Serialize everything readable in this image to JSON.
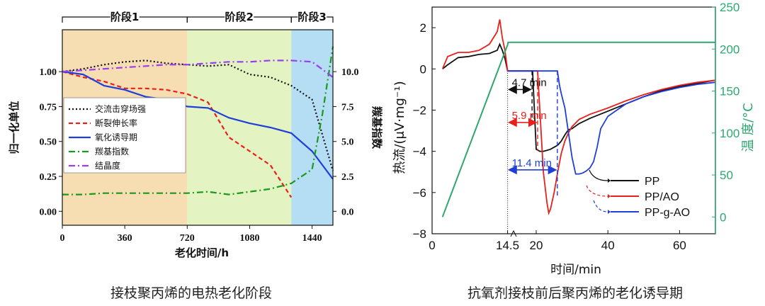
{
  "captions": {
    "left": "接枝聚丙烯的电热老化阶段",
    "right": "抗氧剂接枝前后聚丙烯的老化诱导期"
  },
  "chart_data": [
    {
      "type": "line",
      "xlabel": "老化时间/h",
      "ylabel": "归一化单位",
      "y2label": "羰基指数",
      "xlim": [
        0,
        1560
      ],
      "ylim": [
        -0.1,
        1.3
      ],
      "y2lim": [
        -1.0,
        13.0
      ],
      "xticks": [
        "0",
        "360",
        "720",
        "1080",
        "1440"
      ],
      "xtick_values": [
        0,
        360,
        720,
        1080,
        1440
      ],
      "yticks": [
        "0.00",
        "0.25",
        "0.50",
        "0.75",
        "1.00"
      ],
      "ytick_values": [
        0,
        0.25,
        0.5,
        0.75,
        1.0
      ],
      "y2ticks": [
        "0.0",
        "2.5",
        "5.0",
        "7.5",
        "10.0"
      ],
      "y2tick_values": [
        0,
        2.5,
        5.0,
        7.5,
        10.0
      ],
      "stages": [
        {
          "label": "阶段1",
          "x0": 0,
          "x1": 720,
          "color": "#f7ddb2"
        },
        {
          "label": "阶段2",
          "x0": 720,
          "x1": 1320,
          "color": "#e3f4c2"
        },
        {
          "label": "阶段3",
          "x0": 1320,
          "x1": 1560,
          "color": "#b5def5"
        }
      ],
      "legend_position": "center-left",
      "series": [
        {
          "name": "交流击穿场强",
          "color": "#111111",
          "dash": "2,3",
          "x": [
            0,
            120,
            240,
            360,
            480,
            600,
            720,
            840,
            960,
            1080,
            1200,
            1320,
            1440,
            1560
          ],
          "y": [
            1.0,
            1.02,
            1.05,
            1.07,
            1.08,
            1.06,
            1.05,
            1.04,
            1.05,
            0.98,
            0.96,
            0.9,
            0.8,
            0.29
          ]
        },
        {
          "name": "断裂伸长率",
          "color": "#e8201c",
          "dash": "6,4",
          "x": [
            0,
            120,
            240,
            360,
            480,
            600,
            720,
            840,
            960,
            1080,
            1200,
            1320
          ],
          "y": [
            1.0,
            0.96,
            0.93,
            0.88,
            0.88,
            0.87,
            0.84,
            0.78,
            0.53,
            0.43,
            0.33,
            0.1
          ]
        },
        {
          "name": "氧化诱导期",
          "color": "#1f3fd8",
          "dash": "",
          "x": [
            0,
            120,
            240,
            360,
            480,
            600,
            720,
            840,
            960,
            1080,
            1200,
            1320,
            1440,
            1560
          ],
          "y": [
            1.0,
            0.98,
            0.9,
            0.87,
            0.82,
            0.8,
            0.75,
            0.74,
            0.67,
            0.63,
            0.6,
            0.56,
            0.43,
            0.23
          ]
        },
        {
          "name": "羰基指数",
          "color": "#1a9a1a",
          "dash": "9,4,2,4",
          "axis": "y2",
          "x": [
            0,
            120,
            240,
            360,
            480,
            600,
            720,
            840,
            960,
            1080,
            1200,
            1320,
            1440,
            1500,
            1560
          ],
          "y": [
            1.2,
            1.2,
            1.3,
            1.3,
            1.3,
            1.3,
            1.3,
            1.4,
            1.2,
            1.4,
            1.6,
            2.0,
            3.0,
            7.0,
            11.8
          ]
        },
        {
          "name": "结晶度",
          "color": "#9b3df0",
          "dash": "9,4,2,4",
          "x": [
            0,
            120,
            240,
            360,
            480,
            600,
            720,
            840,
            960,
            1080,
            1200,
            1320,
            1440,
            1560
          ],
          "y": [
            1.0,
            1.01,
            1.02,
            1.03,
            1.04,
            1.05,
            1.05,
            1.06,
            1.07,
            1.07,
            1.08,
            1.08,
            1.07,
            0.96
          ]
        }
      ]
    },
    {
      "type": "line",
      "xlabel": "时间/min",
      "ylabel": "热流/(μV·mg⁻¹)",
      "y2label": "温 度/°C",
      "xlim": [
        0,
        70
      ],
      "ylim": [
        -8,
        3
      ],
      "y2lim": [
        -20,
        250
      ],
      "xticks": [
        "0",
        "14.5",
        "20",
        "40",
        "60"
      ],
      "xtick_values": [
        0,
        14.5,
        20,
        40,
        60
      ],
      "yticks": [
        "2",
        "0",
        "−2",
        "−4",
        "−6",
        "−8"
      ],
      "ytick_values": [
        2,
        0,
        -2,
        -4,
        -6,
        -8
      ],
      "y2ticks": [
        "0",
        "50",
        "100",
        "150",
        "200",
        "250"
      ],
      "y2tick_values": [
        0,
        50,
        100,
        150,
        200,
        250
      ],
      "annotations": [
        {
          "text": "4.7 min",
          "color": "#111111",
          "y": -1.0,
          "x_start": 14.5,
          "x_end": 19.2
        },
        {
          "text": "5.9 min",
          "color": "#e8201c",
          "y": -2.6,
          "x_start": 14.5,
          "x_end": 20.4
        },
        {
          "text": "11.4 min",
          "color": "#1f3fd8",
          "y": -4.9,
          "x_start": 14.5,
          "x_end": 25.9
        }
      ],
      "legend_position": "bottom-right",
      "series": [
        {
          "name": "PP",
          "color": "#111111",
          "x": [
            2,
            3,
            5,
            7,
            9,
            11,
            12.5,
            13,
            13.5,
            14,
            14.5,
            16,
            18,
            19,
            19.3,
            20,
            21,
            22,
            23,
            24,
            25,
            26,
            27,
            28,
            29,
            30,
            32,
            35,
            40,
            45,
            50,
            55,
            60,
            65,
            70
          ],
          "y": [
            0,
            0.2,
            0.55,
            0.6,
            0.7,
            0.75,
            0.9,
            1.2,
            0.9,
            0.5,
            -0.1,
            -0.1,
            -0.1,
            -0.1,
            -0.1,
            -3.9,
            -4.0,
            -4.0,
            -3.95,
            -3.9,
            -3.8,
            -3.7,
            -3.5,
            -3.2,
            -2.95,
            -2.9,
            -2.65,
            -2.4,
            -2.05,
            -1.7,
            -1.35,
            -1.05,
            -0.85,
            -0.7,
            -0.55
          ]
        },
        {
          "name": "PP/AO",
          "color": "#e8201c",
          "x": [
            2,
            3,
            5,
            7,
            9,
            11,
            12.5,
            13,
            13.5,
            14,
            14.5,
            16,
            18,
            20,
            20.4,
            22,
            23,
            23.5,
            24,
            25,
            26,
            27,
            28,
            29,
            30,
            32,
            35,
            40,
            45,
            50,
            55,
            60,
            65,
            70
          ],
          "y": [
            0,
            0.6,
            0.8,
            0.8,
            0.9,
            1.2,
            1.8,
            2.4,
            1.5,
            0.9,
            -0.1,
            -0.1,
            -0.1,
            -0.1,
            -0.1,
            -5.0,
            -6.5,
            -7.0,
            -6.8,
            -6.0,
            -5.0,
            -4.1,
            -3.5,
            -3.1,
            -2.8,
            -2.45,
            -2.2,
            -1.9,
            -1.55,
            -1.25,
            -1.0,
            -0.8,
            -0.65,
            -0.55
          ]
        },
        {
          "name": "PP-g-AO",
          "color": "#1f3fd8",
          "x": [
            14.5,
            16,
            18,
            20,
            22,
            24,
            25.9,
            26.5,
            27,
            28,
            30,
            31,
            32,
            33,
            34,
            35,
            36,
            37,
            38,
            40,
            45,
            50,
            55,
            60,
            65,
            70
          ],
          "y": [
            -0.1,
            -0.1,
            -0.1,
            -0.1,
            -0.1,
            -0.1,
            -0.1,
            -0.8,
            -1.2,
            -1.9,
            -4.3,
            -5.1,
            -5.1,
            -5.05,
            -4.95,
            -4.8,
            -4.5,
            -3.8,
            -2.9,
            -2.3,
            -1.7,
            -1.35,
            -1.1,
            -0.9,
            -0.75,
            -0.65
          ]
        },
        {
          "name": "",
          "color": "#2ca86f",
          "axis": "y2",
          "x": [
            2,
            14.5,
            14.6,
            70
          ],
          "y": [
            0,
            205,
            208,
            208
          ]
        }
      ]
    }
  ]
}
